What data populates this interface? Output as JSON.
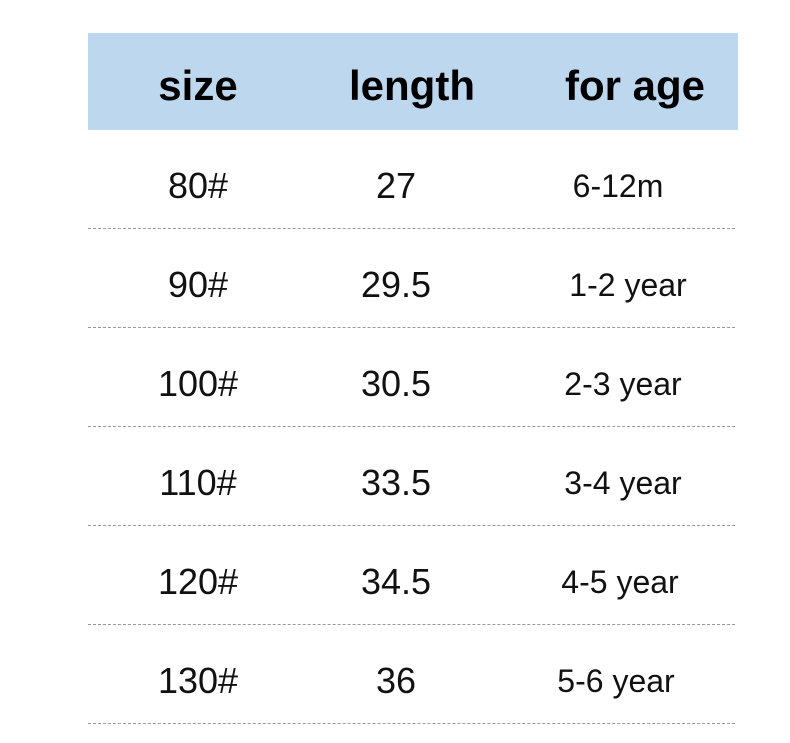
{
  "header": {
    "size": "size",
    "length": "length",
    "age": "for age"
  },
  "colors": {
    "header_bg": "#bdd7ee"
  },
  "rows": [
    {
      "size": "80#",
      "length": "27",
      "age": "6-12m"
    },
    {
      "size": "90#",
      "length": "29.5",
      "age": "1-2 year"
    },
    {
      "size": "100#",
      "length": "30.5",
      "age": "2-3 year"
    },
    {
      "size": "110#",
      "length": "33.5",
      "age": "3-4 year"
    },
    {
      "size": "120#",
      "length": "34.5",
      "age": "4-5 year"
    },
    {
      "size": "130#",
      "length": "36",
      "age": "5-6 year"
    }
  ]
}
